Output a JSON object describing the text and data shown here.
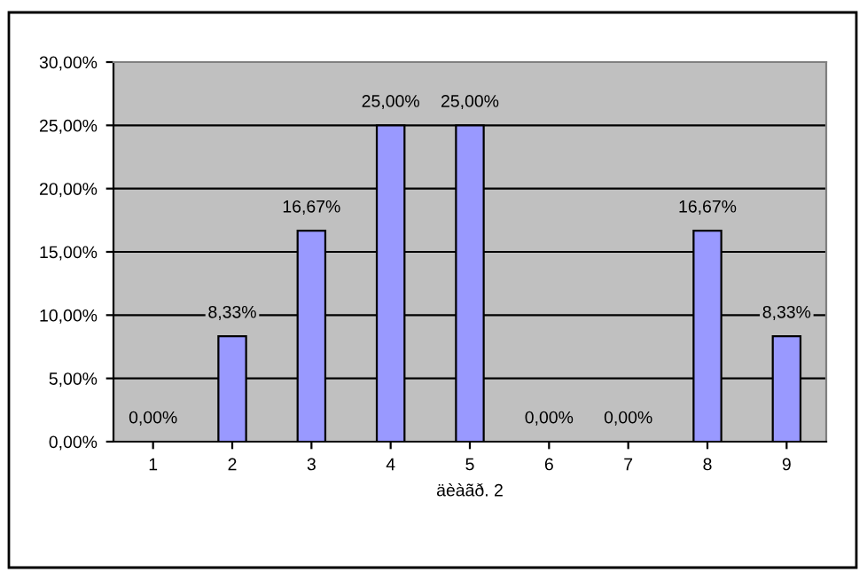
{
  "chart_data": {
    "type": "bar",
    "xlabel": "äèàãð. 2",
    "categories": [
      "1",
      "2",
      "3",
      "4",
      "5",
      "6",
      "7",
      "8",
      "9"
    ],
    "values": [
      0,
      8.33,
      16.67,
      25,
      25,
      0,
      0,
      16.67,
      8.33
    ],
    "value_labels": [
      "0,00%",
      "8,33%",
      "16,67%",
      "25,00%",
      "25,00%",
      "0,00%",
      "0,00%",
      "16,67%",
      "8,33%"
    ],
    "color": "#9999ff",
    "ylim": [
      0,
      30
    ],
    "yticks": [
      {
        "value": 0,
        "label": "0,00%"
      },
      {
        "value": 5,
        "label": "5,00%"
      },
      {
        "value": 10,
        "label": "10,00%"
      },
      {
        "value": 15,
        "label": "15,00%"
      },
      {
        "value": 20,
        "label": "20,00%"
      },
      {
        "value": 25,
        "label": "25,00%"
      },
      {
        "value": 30,
        "label": "30,00%"
      }
    ],
    "grid": "y",
    "legend": false
  }
}
